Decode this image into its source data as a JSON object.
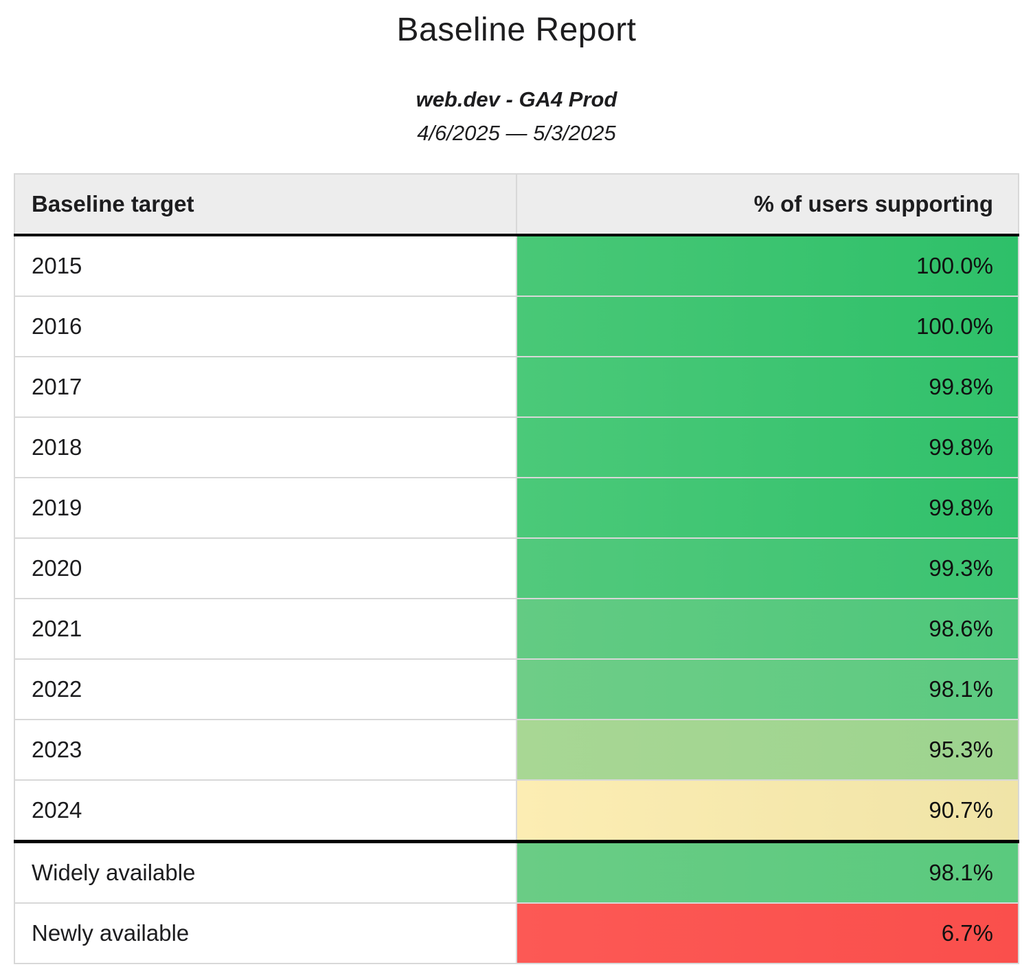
{
  "header": {
    "title": "Baseline Report",
    "subtitle": "web.dev - GA4 Prod",
    "date_range": "4/6/2025 — 5/3/2025"
  },
  "table": {
    "columns": [
      {
        "label": "Baseline target",
        "align": "left"
      },
      {
        "label": "% of users supporting",
        "align": "right"
      }
    ],
    "rows": [
      {
        "target": "2015",
        "value": "100.0%",
        "color_left": "#49c877",
        "color_right": "#2ec069",
        "divider_before": false
      },
      {
        "target": "2016",
        "value": "100.0%",
        "color_left": "#49c877",
        "color_right": "#2ec069",
        "divider_before": false
      },
      {
        "target": "2017",
        "value": "99.8%",
        "color_left": "#4bc979",
        "color_right": "#31c16b",
        "divider_before": false
      },
      {
        "target": "2018",
        "value": "99.8%",
        "color_left": "#4bc979",
        "color_right": "#31c16b",
        "divider_before": false
      },
      {
        "target": "2019",
        "value": "99.8%",
        "color_left": "#4bc979",
        "color_right": "#31c16b",
        "divider_before": false
      },
      {
        "target": "2020",
        "value": "99.3%",
        "color_left": "#52c97c",
        "color_right": "#3bc371",
        "divider_before": false
      },
      {
        "target": "2021",
        "value": "98.6%",
        "color_left": "#63cb83",
        "color_right": "#4ec77b",
        "divider_before": false
      },
      {
        "target": "2022",
        "value": "98.1%",
        "color_left": "#6ecd87",
        "color_right": "#5cca81",
        "divider_before": false
      },
      {
        "target": "2023",
        "value": "95.3%",
        "color_left": "#a8d794",
        "color_right": "#9dd48f",
        "divider_before": false
      },
      {
        "target": "2024",
        "value": "90.7%",
        "color_left": "#fcedb3",
        "color_right": "#f0e4a7",
        "divider_before": false
      },
      {
        "target": "Widely available",
        "value": "98.1%",
        "color_left": "#6acc85",
        "color_right": "#5aca7e",
        "divider_before": true
      },
      {
        "target": "Newly available",
        "value": "6.7%",
        "color_left": "#fc5955",
        "color_right": "#fa4f4c",
        "divider_before": false
      }
    ]
  },
  "palette": {
    "header_background": "#ededed",
    "grid_border": "#d8d8d8",
    "section_border": "#000000",
    "good_green": "#2ec069",
    "warn_yellow": "#f5e7ab",
    "bad_red": "#fb514d"
  },
  "chart_data": {
    "type": "table",
    "title": "Baseline Report",
    "subtitle": "web.dev - GA4 Prod",
    "date_range": "4/6/2025 — 5/3/2025",
    "columns": [
      "Baseline target",
      "% of users supporting"
    ],
    "categories": [
      "2015",
      "2016",
      "2017",
      "2018",
      "2019",
      "2020",
      "2021",
      "2022",
      "2023",
      "2024",
      "Widely available",
      "Newly available"
    ],
    "values": [
      100.0,
      100.0,
      99.8,
      99.8,
      99.8,
      99.3,
      98.6,
      98.1,
      95.3,
      90.7,
      98.1,
      6.7
    ],
    "value_unit": "%",
    "layout_hints": {
      "value_column_conditional_formatting": "green (high) to yellow (mid) to red (low)",
      "section_break_after_index": 9,
      "value_align": "right",
      "target_align": "left"
    }
  }
}
